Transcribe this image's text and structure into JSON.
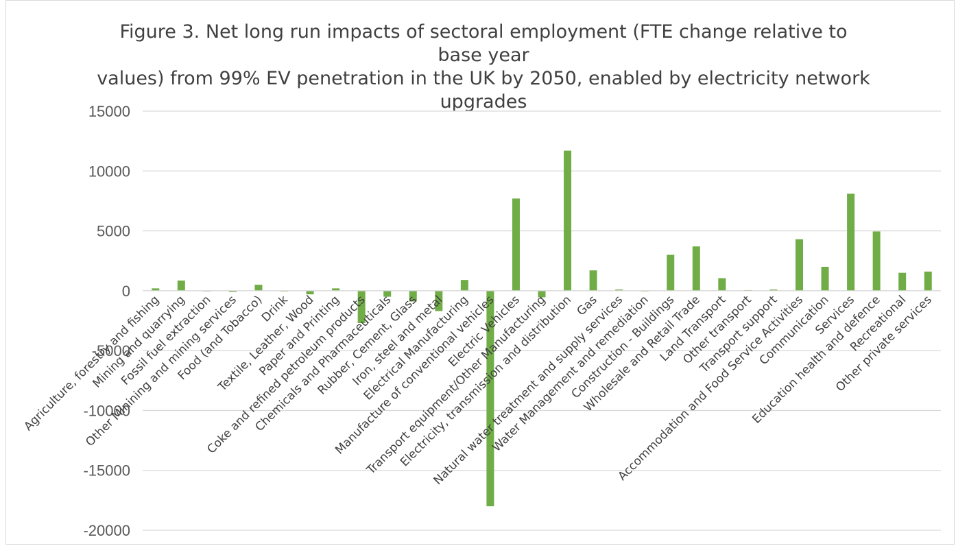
{
  "chart_data": {
    "type": "bar",
    "title": "Figure 3. Net long run impacts of sectoral employment (FTE change relative to base year values) from 99% EV penetration in the UK by 2050, enabled by electricity network upgrades",
    "title_lines": [
      "Figure 3. Net long run impacts of sectoral employment (FTE change relative to base year",
      "values) from 99% EV penetration in the UK by 2050, enabled by electricity network",
      "upgrades"
    ],
    "xlabel": "",
    "ylabel": "",
    "ylim": [
      -20000,
      15000
    ],
    "yticks": [
      15000,
      10000,
      5000,
      0,
      -5000,
      -10000,
      -15000,
      -20000
    ],
    "grid": true,
    "legend": "none",
    "bar_color": "#70ad47",
    "categories": [
      "Agriculture, forestry and fishing",
      "Mining and quarrying",
      "Fossil fuel extraction",
      "Other Minining and mining services",
      "Food (and Tobacco)",
      "Drink",
      "Textile, Leather, Wood",
      "Paper and Printing",
      "Coke and refined petroleum products",
      "Chemicals and Pharmaceuticals",
      "Rubber, Cement, Glass",
      "Iron, steel and metal",
      "Electrical Manufacturing",
      "Manufacture of conventional vehicles",
      "Electric Vehicles",
      "Transport equipment/Other Manufacturing",
      "Electricity, transmission and distribution",
      "Gas",
      "Natural water treatment and supply services",
      "Water Management and remediation",
      "Construction - Buildings",
      "Wholesale and Retail Trade",
      "Land Transport",
      "Other transport",
      "Transport support",
      "Accommodation and Food Service Activities",
      "Communication",
      "Services",
      "Education health and defence",
      "Recreational",
      "Other private services"
    ],
    "values": [
      200,
      850,
      -50,
      -100,
      500,
      -30,
      -300,
      200,
      -2700,
      -500,
      -900,
      -1700,
      900,
      -18000,
      7700,
      -550,
      11700,
      1700,
      100,
      -30,
      3000,
      3700,
      1050,
      50,
      100,
      4300,
      2000,
      8100,
      4950,
      1500,
      1600
    ]
  }
}
